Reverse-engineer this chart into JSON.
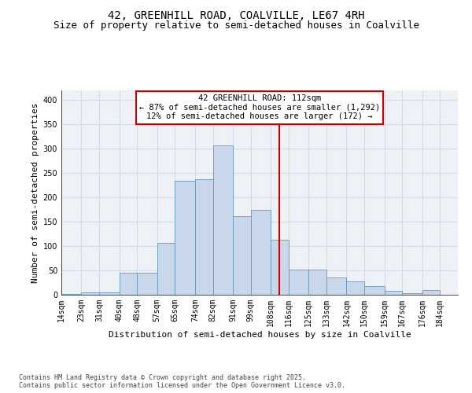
{
  "title_line1": "42, GREENHILL ROAD, COALVILLE, LE67 4RH",
  "title_line2": "Size of property relative to semi-detached houses in Coalville",
  "xlabel": "Distribution of semi-detached houses by size in Coalville",
  "ylabel": "Number of semi-detached properties",
  "bin_labels": [
    "14sqm",
    "23sqm",
    "31sqm",
    "40sqm",
    "48sqm",
    "57sqm",
    "65sqm",
    "74sqm",
    "82sqm",
    "91sqm",
    "99sqm",
    "108sqm",
    "116sqm",
    "125sqm",
    "133sqm",
    "142sqm",
    "150sqm",
    "159sqm",
    "167sqm",
    "176sqm",
    "184sqm"
  ],
  "bin_edges": [
    14,
    23,
    31,
    40,
    48,
    57,
    65,
    74,
    82,
    91,
    99,
    108,
    116,
    125,
    133,
    142,
    150,
    159,
    167,
    176,
    184
  ],
  "bar_heights": [
    1,
    5,
    5,
    45,
    45,
    107,
    235,
    238,
    307,
    162,
    175,
    113,
    52,
    52,
    35,
    27,
    17,
    8,
    3,
    9
  ],
  "bar_color": "#c8d8ea",
  "bar_edge_color": "#6699bb",
  "grid_color": "#d0dde8",
  "background_color": "#eef2f7",
  "vline_x": 112,
  "vline_color": "#cc0000",
  "annotation_text": "42 GREENHILL ROAD: 112sqm\n← 87% of semi-detached houses are smaller (1,292)\n12% of semi-detached houses are larger (172) →",
  "annotation_box_color": "#cc0000",
  "ylim": [
    0,
    420
  ],
  "yticks": [
    0,
    50,
    100,
    150,
    200,
    250,
    300,
    350,
    400
  ],
  "footnote": "Contains HM Land Registry data © Crown copyright and database right 2025.\nContains public sector information licensed under the Open Government Licence v3.0.",
  "title_fontsize": 10,
  "subtitle_fontsize": 9,
  "axis_label_fontsize": 8,
  "tick_fontsize": 7,
  "annotation_fontsize": 7.5
}
